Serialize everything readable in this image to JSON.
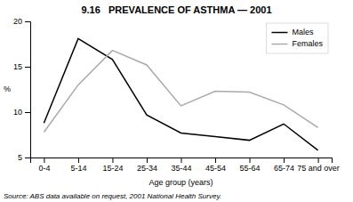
{
  "chart_data": {
    "type": "line",
    "title": "9.16   PREVALENCE OF ASTHMA — 2001",
    "x_label": "Age group (years)",
    "y_label": "%",
    "source": "Source: ABS data available on request, 2001 National Health Survey.",
    "categories": [
      "0-4",
      "5-14",
      "15-24",
      "25-34",
      "35-44",
      "45-54",
      "55-64",
      "65-74",
      "75 and over"
    ],
    "series": [
      {
        "name": "Males",
        "color": "#000000",
        "values": [
          8.8,
          18.1,
          15.8,
          9.7,
          7.7,
          7.3,
          6.9,
          8.7,
          5.8
        ]
      },
      {
        "name": "Females",
        "color": "#aaaaaa",
        "values": [
          7.8,
          13.0,
          16.8,
          15.2,
          10.7,
          12.3,
          12.2,
          10.8,
          8.3
        ]
      }
    ],
    "ylim": [
      5,
      20
    ],
    "yticks": [
      5,
      10,
      15,
      20
    ],
    "grid": false,
    "legend": "upper right"
  }
}
